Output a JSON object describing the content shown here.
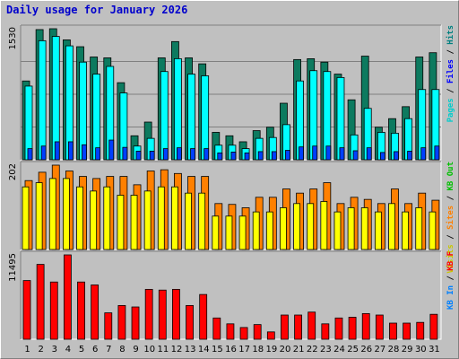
{
  "chart_data": {
    "type": "bar",
    "title": "Daily usage for January 2026",
    "categories": [
      "1",
      "2",
      "3",
      "4",
      "5",
      "6",
      "7",
      "8",
      "9",
      "10",
      "11",
      "12",
      "13",
      "14",
      "15",
      "16",
      "17",
      "18",
      "19",
      "20",
      "21",
      "22",
      "23",
      "24",
      "25",
      "26",
      "27",
      "28",
      "29",
      "30",
      "31"
    ],
    "weekend_days": [
      "3",
      "4",
      "10",
      "11",
      "17",
      "18",
      "24",
      "25",
      "31"
    ],
    "panels": [
      {
        "name": "top",
        "ymax_label": "1530",
        "ylim": [
          0,
          1530
        ],
        "legend": [
          "Pages",
          "Files",
          "Hits"
        ],
        "series": [
          {
            "name": "Hits",
            "color": "#0d7a5f",
            "values": [
              920,
              1520,
              1530,
              1400,
              1320,
              1200,
              1190,
              900,
              280,
              440,
              1190,
              1380,
              1190,
              1120,
              320,
              280,
              210,
              340,
              380,
              660,
              1170,
              1180,
              1140,
              1000,
              700,
              1210,
              380,
              480,
              620,
              1200,
              1250
            ]
          },
          {
            "name": "Files",
            "color": "#00ffff",
            "values": [
              860,
              1390,
              1440,
              1330,
              1140,
              1000,
              1090,
              780,
              160,
              250,
              1030,
              1180,
              1000,
              980,
              170,
              170,
              130,
              250,
              260,
              410,
              920,
              1040,
              1030,
              960,
              290,
              600,
              320,
              310,
              480,
              820,
              820
            ]
          },
          {
            "name": "Pages",
            "color": "#0040ff",
            "values": [
              130,
              160,
              210,
              210,
              175,
              140,
              230,
              145,
              100,
              100,
              130,
              140,
              130,
              130,
              80,
              90,
              80,
              95,
              95,
              110,
              150,
              160,
              160,
              140,
              105,
              140,
              85,
              95,
              100,
              140,
              160
            ]
          }
        ]
      },
      {
        "name": "middle",
        "ymax_label": "202",
        "ylim": [
          0,
          202
        ],
        "legend": [
          "Visits",
          "Sites",
          "KB Out"
        ],
        "series": [
          {
            "name": "Sites",
            "color": "#ff8000",
            "values": [
              165,
              185,
              202,
              188,
              175,
              170,
              175,
              175,
              155,
              188,
              191,
              182,
              175,
              175,
              110,
              108,
              100,
              125,
              125,
              145,
              135,
              145,
              160,
              110,
              125,
              120,
              110,
              145,
              110,
              135,
              118
            ]
          },
          {
            "name": "Visits",
            "color": "#ffff00",
            "values": [
              150,
              160,
              170,
              170,
              150,
              140,
              150,
              130,
              130,
              140,
              150,
              150,
              135,
              135,
              80,
              80,
              80,
              90,
              90,
              100,
              110,
              110,
              115,
              90,
              100,
              100,
              90,
              110,
              90,
              100,
              90
            ]
          },
          {
            "name": "KB Out",
            "color": "#00c000",
            "values": [
              0,
              0,
              0,
              0,
              0,
              0,
              0,
              0,
              0,
              0,
              0,
              0,
              0,
              0,
              0,
              0,
              0,
              0,
              0,
              0,
              0,
              0,
              0,
              0,
              0,
              0,
              0,
              0,
              0,
              0,
              0
            ]
          }
        ]
      },
      {
        "name": "bottom",
        "ymax_label": "11495",
        "ylim": [
          0,
          11495
        ],
        "legend": [
          "KB In",
          "KB F"
        ],
        "series": [
          {
            "name": "KB F",
            "color": "#ff0000",
            "values": [
              8000,
              10200,
              7800,
              11495,
              7800,
              7400,
              3600,
              4600,
              4400,
              6800,
              6700,
              6800,
              4600,
              6100,
              2900,
              2100,
              1600,
              2000,
              1000,
              3300,
              3300,
              3700,
              2100,
              2900,
              3000,
              3500,
              3300,
              2200,
              2200,
              2300,
              3400
            ]
          }
        ]
      }
    ],
    "side_labels": {
      "top": [
        {
          "text": "Pages",
          "color": "#00cccc"
        },
        {
          "text": " / ",
          "color": "#000000"
        },
        {
          "text": "Files",
          "color": "#0000ff"
        },
        {
          "text": " / ",
          "color": "#000000"
        },
        {
          "text": "Hits",
          "color": "#008080"
        }
      ],
      "middle": [
        {
          "text": "Visits",
          "color": "#c8c800"
        },
        {
          "text": " / ",
          "color": "#000000"
        },
        {
          "text": "Sites",
          "color": "#ff8000"
        },
        {
          "text": " / ",
          "color": "#000000"
        },
        {
          "text": "KB Out",
          "color": "#00c000"
        }
      ],
      "bottom": [
        {
          "text": "KB In",
          "color": "#0080ff"
        },
        {
          "text": " / ",
          "color": "#000000"
        },
        {
          "text": "KB F",
          "color": "#ff0000"
        }
      ]
    },
    "colors": {
      "background": "#c0c0c0",
      "grid": "#808080",
      "weekday_label": "#000000",
      "weekend_label": "#008000",
      "title": "#0000cc"
    }
  }
}
